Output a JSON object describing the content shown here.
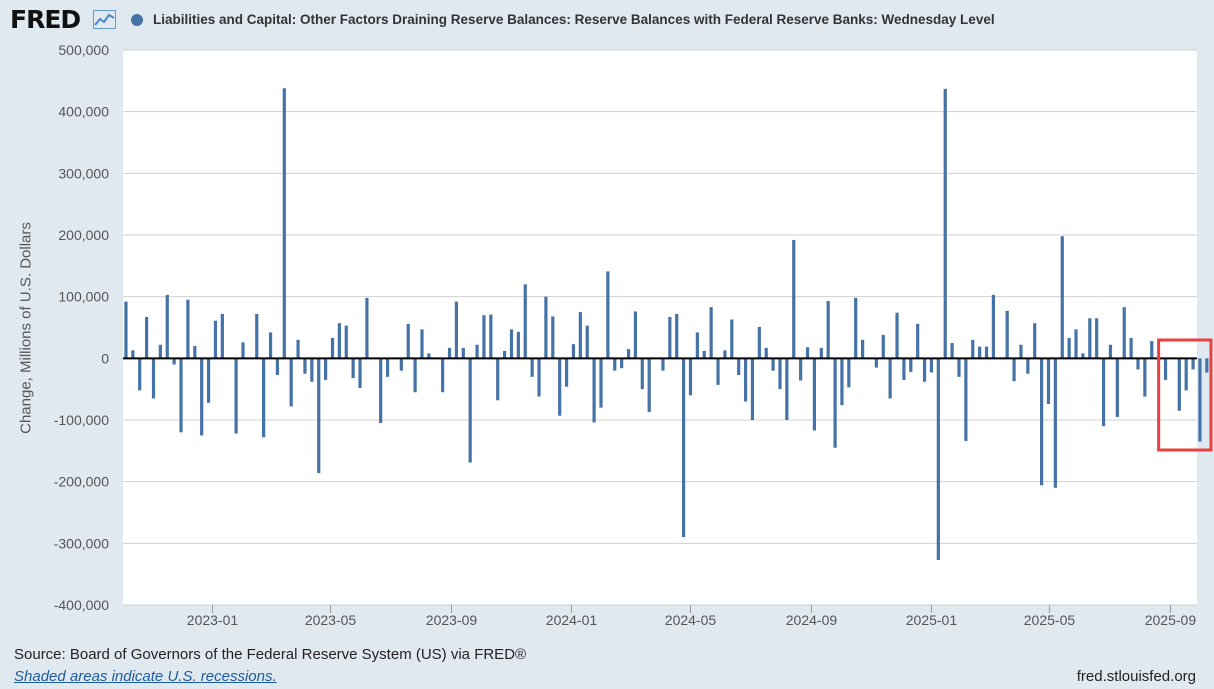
{
  "header": {
    "logo": "FRED",
    "logo_icon": "line-chart-icon",
    "title": "Liabilities and Capital: Other Factors Draining Reserve Balances: Reserve Balances with Federal Reserve Banks: Wednesday Level"
  },
  "footer": {
    "source": "Source: Board of Governors of the Federal Reserve System (US) via FRED®",
    "recession_note": "Shaded areas indicate U.S. recessions.",
    "site": "fred.stlouisfed.org"
  },
  "colors": {
    "series": "#4572a7",
    "highlight_box": "#e8413f",
    "background": "#e1e9f0"
  },
  "chart_data": {
    "type": "bar",
    "ylabel": "Change, Millions of U.S. Dollars",
    "ylim": [
      -400000,
      500000
    ],
    "y_ticks": [
      500000,
      400000,
      300000,
      200000,
      100000,
      0,
      -100000,
      -200000,
      -300000,
      -400000
    ],
    "y_tick_labels": [
      "500,000",
      "400,000",
      "300,000",
      "200,000",
      "100,000",
      "0",
      "-100,000",
      "-200,000",
      "-300,000",
      "-400,000"
    ],
    "x_range": [
      "2022-10-02",
      "2025-09-28"
    ],
    "x_ticks": [
      "2023-01-01",
      "2023-05-01",
      "2023-09-01",
      "2024-01-01",
      "2024-05-01",
      "2024-09-01",
      "2025-01-01",
      "2025-05-01",
      "2025-09-01"
    ],
    "x_tick_labels": [
      "2023-01",
      "2023-05",
      "2023-09",
      "2024-01",
      "2024-05",
      "2024-09",
      "2025-01",
      "2025-05",
      "2025-09"
    ],
    "grid": true,
    "legend": "top",
    "highlight": {
      "from": "2025-08-20",
      "to": "2025-09-30"
    },
    "series": [
      {
        "start_date": "2022-10-05",
        "interval_days": 7,
        "values": [
          92000,
          13000,
          -52000,
          67000,
          -65000,
          22000,
          103000,
          -10000,
          -120000,
          95000,
          20000,
          -125000,
          -72000,
          61000,
          72000,
          0,
          -122000,
          26000,
          0,
          72000,
          -128000,
          42000,
          -27000,
          438000,
          -78000,
          30000,
          -25000,
          -38000,
          -186000,
          -35000,
          33000,
          57000,
          53000,
          -32000,
          -48000,
          98000,
          0,
          -105000,
          -30000,
          0,
          -20000,
          56000,
          -55000,
          47000,
          8000,
          0,
          -55000,
          17000,
          92000,
          17000,
          -169000,
          22000,
          70000,
          71000,
          -68000,
          12000,
          47000,
          43000,
          120000,
          -30000,
          -62000,
          100000,
          68000,
          -93000,
          -46000,
          23000,
          75000,
          53000,
          -104000,
          -80000,
          141000,
          -20000,
          -16000,
          15000,
          76000,
          -50000,
          -87000,
          0,
          -20000,
          67000,
          72000,
          -290000,
          -60000,
          42000,
          12000,
          83000,
          -43000,
          13000,
          63000,
          -27000,
          -70000,
          -100000,
          51000,
          17000,
          -20000,
          -50000,
          -100000,
          192000,
          -36000,
          18000,
          -117000,
          17000,
          93000,
          -145000,
          -76000,
          -47000,
          98000,
          30000,
          0,
          -15000,
          38000,
          -65000,
          74000,
          -35000,
          -22000,
          56000,
          -38000,
          -23000,
          -327000,
          437000,
          25000,
          -30000,
          -134000,
          30000,
          19000,
          19000,
          103000,
          0,
          77000,
          -37000,
          22000,
          -25000,
          57000,
          -206000,
          -74000,
          -210000,
          198000,
          33000,
          47000,
          8000,
          65000,
          65000,
          -110000,
          22000,
          -95000,
          83000,
          33000,
          -18000,
          -62000,
          28000,
          -5000,
          -35000,
          0,
          -85000,
          -52000,
          -18000,
          -135000,
          -23000
        ]
      }
    ]
  }
}
